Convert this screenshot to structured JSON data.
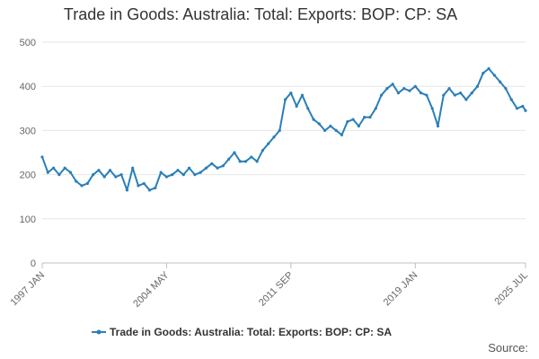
{
  "chart_data": {
    "type": "line",
    "title": "Trade in Goods: Australia: Total: Exports: BOP: CP: SA",
    "xlabel": "",
    "ylabel": "",
    "ylim": [
      0,
      500
    ],
    "y_ticks": [
      0,
      100,
      200,
      300,
      400,
      500
    ],
    "x_tick_labels": [
      "1997 JAN",
      "2004 MAY",
      "2011 SEP",
      "2019 JAN",
      "2025 JUL"
    ],
    "x_range": [
      "1997 JAN",
      "2025 JUL"
    ],
    "grid": "horizontal",
    "legend_position": "bottom",
    "series": [
      {
        "name": "Trade in Goods: Australia: Total: Exports: BOP: CP: SA",
        "color": "#2b7fb8",
        "points": [
          [
            "1997 JAN",
            240
          ],
          [
            "1997 MAY",
            205
          ],
          [
            "1997 SEP",
            215
          ],
          [
            "1998 JAN",
            200
          ],
          [
            "1998 MAY",
            215
          ],
          [
            "1998 SEP",
            205
          ],
          [
            "1999 JAN",
            185
          ],
          [
            "1999 MAY",
            175
          ],
          [
            "1999 SEP",
            180
          ],
          [
            "2000 JAN",
            200
          ],
          [
            "2000 MAY",
            210
          ],
          [
            "2000 SEP",
            195
          ],
          [
            "2001 JAN",
            210
          ],
          [
            "2001 MAY",
            195
          ],
          [
            "2001 SEP",
            200
          ],
          [
            "2002 JAN",
            165
          ],
          [
            "2002 MAY",
            215
          ],
          [
            "2002 SEP",
            175
          ],
          [
            "2003 JAN",
            180
          ],
          [
            "2003 MAY",
            165
          ],
          [
            "2003 SEP",
            170
          ],
          [
            "2004 JAN",
            205
          ],
          [
            "2004 MAY",
            195
          ],
          [
            "2004 SEP",
            200
          ],
          [
            "2005 JAN",
            210
          ],
          [
            "2005 MAY",
            200
          ],
          [
            "2005 SEP",
            215
          ],
          [
            "2006 JAN",
            200
          ],
          [
            "2006 MAY",
            205
          ],
          [
            "2006 SEP",
            215
          ],
          [
            "2007 JAN",
            225
          ],
          [
            "2007 MAY",
            215
          ],
          [
            "2007 SEP",
            220
          ],
          [
            "2008 JAN",
            235
          ],
          [
            "2008 MAY",
            250
          ],
          [
            "2008 SEP",
            230
          ],
          [
            "2009 JAN",
            230
          ],
          [
            "2009 MAY",
            240
          ],
          [
            "2009 SEP",
            230
          ],
          [
            "2010 JAN",
            255
          ],
          [
            "2010 MAY",
            270
          ],
          [
            "2010 SEP",
            285
          ],
          [
            "2011 JAN",
            300
          ],
          [
            "2011 MAY",
            370
          ],
          [
            "2011 SEP",
            385
          ],
          [
            "2012 JAN",
            355
          ],
          [
            "2012 MAY",
            380
          ],
          [
            "2012 SEP",
            350
          ],
          [
            "2013 JAN",
            325
          ],
          [
            "2013 MAY",
            315
          ],
          [
            "2013 SEP",
            300
          ],
          [
            "2014 JAN",
            310
          ],
          [
            "2014 MAY",
            300
          ],
          [
            "2014 SEP",
            290
          ],
          [
            "2015 JAN",
            320
          ],
          [
            "2015 MAY",
            325
          ],
          [
            "2015 SEP",
            310
          ],
          [
            "2016 JAN",
            330
          ],
          [
            "2016 MAY",
            330
          ],
          [
            "2016 SEP",
            350
          ],
          [
            "2017 JAN",
            380
          ],
          [
            "2017 MAY",
            395
          ],
          [
            "2017 SEP",
            405
          ],
          [
            "2018 JAN",
            385
          ],
          [
            "2018 MAY",
            395
          ],
          [
            "2018 SEP",
            390
          ],
          [
            "2019 JAN",
            400
          ],
          [
            "2019 MAY",
            385
          ],
          [
            "2019 SEP",
            380
          ],
          [
            "2020 JAN",
            350
          ],
          [
            "2020 MAY",
            310
          ],
          [
            "2020 SEP",
            380
          ],
          [
            "2021 JAN",
            395
          ],
          [
            "2021 MAY",
            380
          ],
          [
            "2021 SEP",
            385
          ],
          [
            "2022 JAN",
            370
          ],
          [
            "2022 MAY",
            385
          ],
          [
            "2022 SEP",
            400
          ],
          [
            "2023 JAN",
            430
          ],
          [
            "2023 MAY",
            440
          ],
          [
            "2023 SEP",
            425
          ],
          [
            "2024 JAN",
            410
          ],
          [
            "2024 MAY",
            395
          ],
          [
            "2024 SEP",
            370
          ],
          [
            "2025 JAN",
            350
          ],
          [
            "2025 MAY",
            355
          ],
          [
            "2025 JUL",
            345
          ]
        ]
      }
    ]
  },
  "source_label": "Source:"
}
